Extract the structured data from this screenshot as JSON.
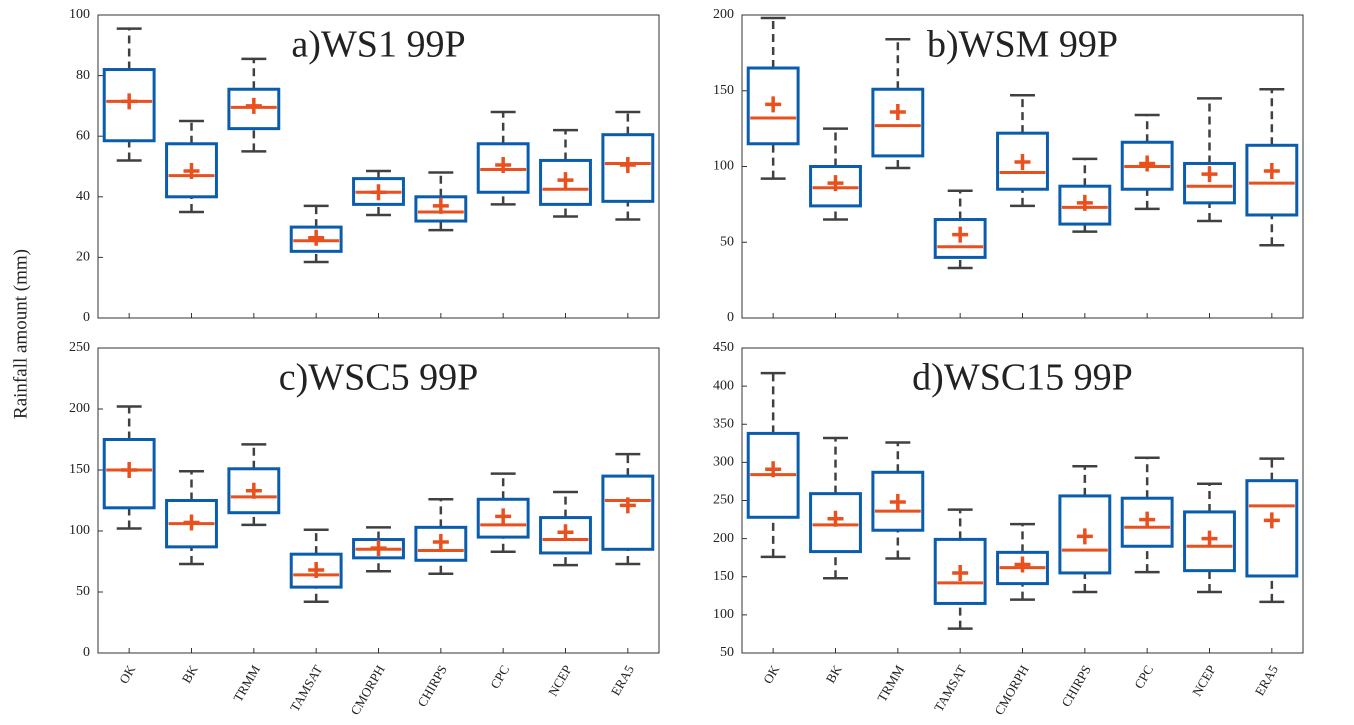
{
  "chart_data": [
    {
      "type": "box",
      "title": "a)WS1 99P",
      "ylabel": "Rainfall amount (mm)",
      "ylim": [
        0,
        100
      ],
      "yticks": [
        0,
        20,
        40,
        60,
        80,
        100
      ],
      "box_color": "#0a5cad",
      "median_color": "#e8501e",
      "whisker_color": "#404040",
      "min": [
        52,
        35,
        55,
        18.5,
        34,
        29,
        37.5,
        33.5,
        32.5
      ],
      "q1": [
        58.5,
        40,
        62.5,
        22,
        37.5,
        32,
        41.5,
        37.5,
        38.5
      ],
      "median": [
        71.5,
        47,
        69.5,
        25.5,
        41.5,
        35,
        49,
        42.5,
        51
      ],
      "q3": [
        82,
        57.5,
        75.5,
        30,
        46,
        40,
        57.5,
        52,
        60.5
      ],
      "max": [
        95.5,
        65,
        85.5,
        37,
        48.5,
        48,
        68,
        62,
        68
      ],
      "mean": [
        71.5,
        48.5,
        70,
        26.5,
        41.5,
        37,
        50.5,
        45.5,
        50.5
      ]
    },
    {
      "type": "box",
      "title": "b)WSM 99P",
      "ylim": [
        0,
        200
      ],
      "yticks": [
        0,
        50,
        100,
        150,
        200
      ],
      "box_color": "#0a5cad",
      "median_color": "#e8501e",
      "whisker_color": "#404040",
      "min": [
        92,
        65,
        99,
        33,
        74,
        57,
        72,
        64,
        48
      ],
      "q1": [
        115,
        74,
        107,
        40,
        85,
        62,
        85,
        76,
        68
      ],
      "median": [
        132,
        86,
        127,
        47,
        96,
        73,
        100,
        87,
        89
      ],
      "q3": [
        165,
        100,
        151,
        65,
        122,
        87,
        116,
        102,
        114
      ],
      "max": [
        198,
        125,
        184,
        84,
        147,
        105,
        134,
        145,
        151
      ],
      "mean": [
        141,
        89,
        136,
        55,
        103,
        76,
        102,
        95,
        97
      ]
    },
    {
      "type": "box",
      "title": "c)WSC5 99P",
      "ylim": [
        0,
        250
      ],
      "yticks": [
        0,
        50,
        100,
        150,
        200,
        250
      ],
      "box_color": "#0a5cad",
      "median_color": "#e8501e",
      "whisker_color": "#404040",
      "categories": [
        "OK",
        "BK",
        "TRMM",
        "TAMSAT",
        "CMORPH",
        "CHIRPS",
        "CPC",
        "NCEP",
        "ERA5"
      ],
      "min": [
        102,
        73,
        105,
        42,
        67,
        65,
        83,
        72,
        73
      ],
      "q1": [
        119,
        87,
        115,
        54,
        78,
        76,
        95,
        82,
        85
      ],
      "median": [
        150,
        106,
        128,
        64,
        85,
        84,
        105,
        93,
        125
      ],
      "q3": [
        175,
        125,
        151,
        81,
        93,
        103,
        126,
        111,
        145
      ],
      "max": [
        202,
        149,
        171,
        101,
        103,
        126,
        147,
        132,
        163
      ],
      "mean": [
        150,
        107,
        133,
        68,
        86,
        91,
        112,
        99,
        121
      ]
    },
    {
      "type": "box",
      "title": "d)WSC15 99P",
      "ylim": [
        50,
        450
      ],
      "yticks": [
        50,
        100,
        150,
        200,
        250,
        300,
        350,
        400,
        450
      ],
      "box_color": "#0a5cad",
      "median_color": "#e8501e",
      "whisker_color": "#404040",
      "categories": [
        "OK",
        "BK",
        "TRMM",
        "TAMSAT",
        "CMORPH",
        "CHIRPS",
        "CPC",
        "NCEP",
        "ERA5"
      ],
      "min": [
        176,
        148,
        174,
        82,
        120,
        130,
        156,
        130,
        117
      ],
      "q1": [
        228,
        183,
        211,
        115,
        141,
        155,
        190,
        158,
        151
      ],
      "median": [
        284,
        218,
        236,
        142,
        162,
        185,
        215,
        190,
        243
      ],
      "q3": [
        338,
        259,
        287,
        199,
        182,
        256,
        253,
        235,
        276
      ],
      "max": [
        417,
        332,
        326,
        238,
        219,
        295,
        306,
        272,
        305
      ],
      "mean": [
        291,
        226,
        248,
        155,
        166,
        203,
        225,
        200,
        224
      ]
    }
  ]
}
